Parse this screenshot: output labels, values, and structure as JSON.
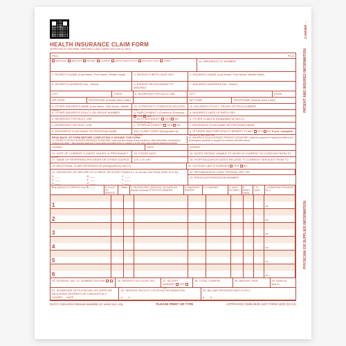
{
  "form": {
    "title": "HEALTH INSURANCE CLAIM FORM",
    "subtitle": "APPROVED BY NATIONAL UNIFORM CLAIM COMMITTEE (NUCC) 08/12",
    "pica": "PICA",
    "carrier": "CARRIER →"
  },
  "boxes": {
    "b1_insurance_types": [
      "MEDICARE",
      "MEDICAID",
      "TRICARE",
      "CHAMPVA",
      "GROUP HEALTH PLAN",
      "FECA BLK LUNG",
      "OTHER"
    ],
    "b1a": "1a. INSURED'S I.D. NUMBER",
    "b2": "2. PATIENT'S NAME (Last Name, First Name, Middle Initial)",
    "b3": "3. PATIENT'S BIRTH DATE  SEX",
    "b4": "4. INSURED'S NAME (Last Name, First Name, Middle Initial)",
    "b5": "5. PATIENT'S ADDRESS (No., Street)",
    "b6": "6. PATIENT RELATIONSHIP TO INSURED",
    "b7": "7. INSURED'S ADDRESS (No., Street)",
    "b5_city": "CITY",
    "b5_state": "STATE",
    "b5_zip": "ZIP CODE",
    "b5_phone": "TELEPHONE (Include Area Code)",
    "b7_city": "CITY",
    "b7_state": "STATE",
    "b7_zip": "ZIP CODE",
    "b7_phone": "TELEPHONE (Include Area Code)",
    "b8": "8. RESERVED FOR NUCC USE",
    "b9": "9. OTHER INSURED'S NAME (Last Name, First Name, Middle Initial)",
    "b9a": "a. OTHER INSURED'S POLICY OR GROUP NUMBER",
    "b9b": "b. RESERVED FOR NUCC USE",
    "b9c": "c. RESERVED FOR NUCC USE",
    "b9d": "d. INSURANCE PLAN NAME OR PROGRAM NAME",
    "b10": "10. IS PATIENT'S CONDITION RELATED TO:",
    "b10a": "a. EMPLOYMENT? (Current or Previous)",
    "b10b": "b. AUTO ACCIDENT?",
    "b10c": "c. OTHER ACCIDENT?",
    "b10d": "10d. CLAIM CODES (Designated by NUCC)",
    "b11": "11. INSURED'S POLICY GROUP OR FECA NUMBER",
    "b11a": "a. INSURED'S DATE OF BIRTH  SEX",
    "b11b": "b. OTHER CLAIM ID (Designated by NUCC)",
    "b11c": "c. INSURANCE PLAN NAME OR PROGRAM NAME",
    "b11d": "d. IS THERE ANOTHER HEALTH BENEFIT PLAN?",
    "b11d_note": "If yes, complete items 9, 9a, and 9d.",
    "yes": "YES",
    "no": "NO",
    "place": "PLACE (State)",
    "read_back_title": "READ BACK OF FORM BEFORE COMPLETING & SIGNING THIS FORM.",
    "b12": "12. PATIENT'S OR AUTHORIZED PERSON'S SIGNATURE I authorize the release of any medical or other information necessary to process this claim. I also request payment of government benefits either to myself or to the party who accepts assignment below.",
    "b13": "13. INSURED'S OR AUTHORIZED PERSON'S SIGNATURE I authorize payment of medical benefits to the undersigned physician or supplier for services described below.",
    "signed": "SIGNED",
    "date": "DATE",
    "b14": "14. DATE OF CURRENT ILLNESS, INJURY, or PREGNANCY (LMP)",
    "b15": "15. OTHER DATE",
    "b16": "16. DATES PATIENT UNABLE TO WORK IN CURRENT OCCUPATION",
    "b17": "17. NAME OF REFERRING PROVIDER OR OTHER SOURCE",
    "b17a": "17a.",
    "b17b": "17b. NPI",
    "b18": "18. HOSPITALIZATION DATES RELATED TO CURRENT SERVICES",
    "b19": "19. ADDITIONAL CLAIM INFORMATION (Designated by NUCC)",
    "b20": "20. OUTSIDE LAB?   $ CHARGES",
    "b21": "21. DIAGNOSIS OR NATURE OF ILLNESS OR INJURY  Relate A-L to service line below (24E)",
    "b21_ind": "ICD Ind.",
    "b22": "22. RESUBMISSION CODE  ORIGINAL REF. NO.",
    "b23": "23. PRIOR AUTHORIZATION NUMBER",
    "b21_letters": [
      "A.",
      "B.",
      "C.",
      "D.",
      "E.",
      "F.",
      "G.",
      "H.",
      "I.",
      "J.",
      "K.",
      "L."
    ],
    "from": "FROM",
    "to": "TO",
    "qual": "QUAL",
    "b25": "25. FEDERAL TAX I.D. NUMBER  SSN EIN",
    "b26": "26. PATIENT'S ACCOUNT NO.",
    "b27": "27. ACCEPT ASSIGN?",
    "b28": "28. TOTAL CHARGE",
    "b29": "29. AMOUNT PAID",
    "b30": "30. Rsvd for NUCC",
    "b31": "31. SIGNATURE OF PHYSICIAN OR SUPPLIER INCLUDING DEGREES OR CREDENTIALS",
    "b32": "32. SERVICE FACILITY LOCATION INFORMATION",
    "b33": "33. BILLING PROVIDER INFO & PH #",
    "npi": "NPI",
    "a": "a.",
    "b": "b."
  },
  "service_header": {
    "a": "24. A. DATE(S) OF SERVICE  From  To",
    "b": "B. PLACE OF SERVICE",
    "c": "C. EMG",
    "d": "D. PROCEDURES, SERVICES, OR SUPPLIES (Explain Unusual) CPT/HCPCS  MODIFIER",
    "e": "E. DIAGNOSIS POINTER",
    "f": "F. $ CHARGES",
    "g": "G. DAYS OR UNITS",
    "h": "H. EPSDT Family Plan",
    "i": "I. ID QUAL",
    "j": "J. RENDERING PROVIDER ID. #"
  },
  "service_lines": [
    "1",
    "2",
    "3",
    "4",
    "5",
    "6"
  ],
  "side": {
    "patient_insured": "PATIENT AND INSURED INFORMATION",
    "physician_supplier": "PHYSICIAN OR SUPPLIER INFORMATION"
  },
  "footer": {
    "left": "NUCC Instruction Manual available at: www.nucc.org",
    "center": "PLEASE PRINT OR TYPE",
    "right": "APPROVED OMB-0938-1197 FORM 1500 (02-12)"
  },
  "colors": {
    "red": "#b8493a",
    "shade": "#f9e8dd",
    "bg": "#ffffff"
  }
}
